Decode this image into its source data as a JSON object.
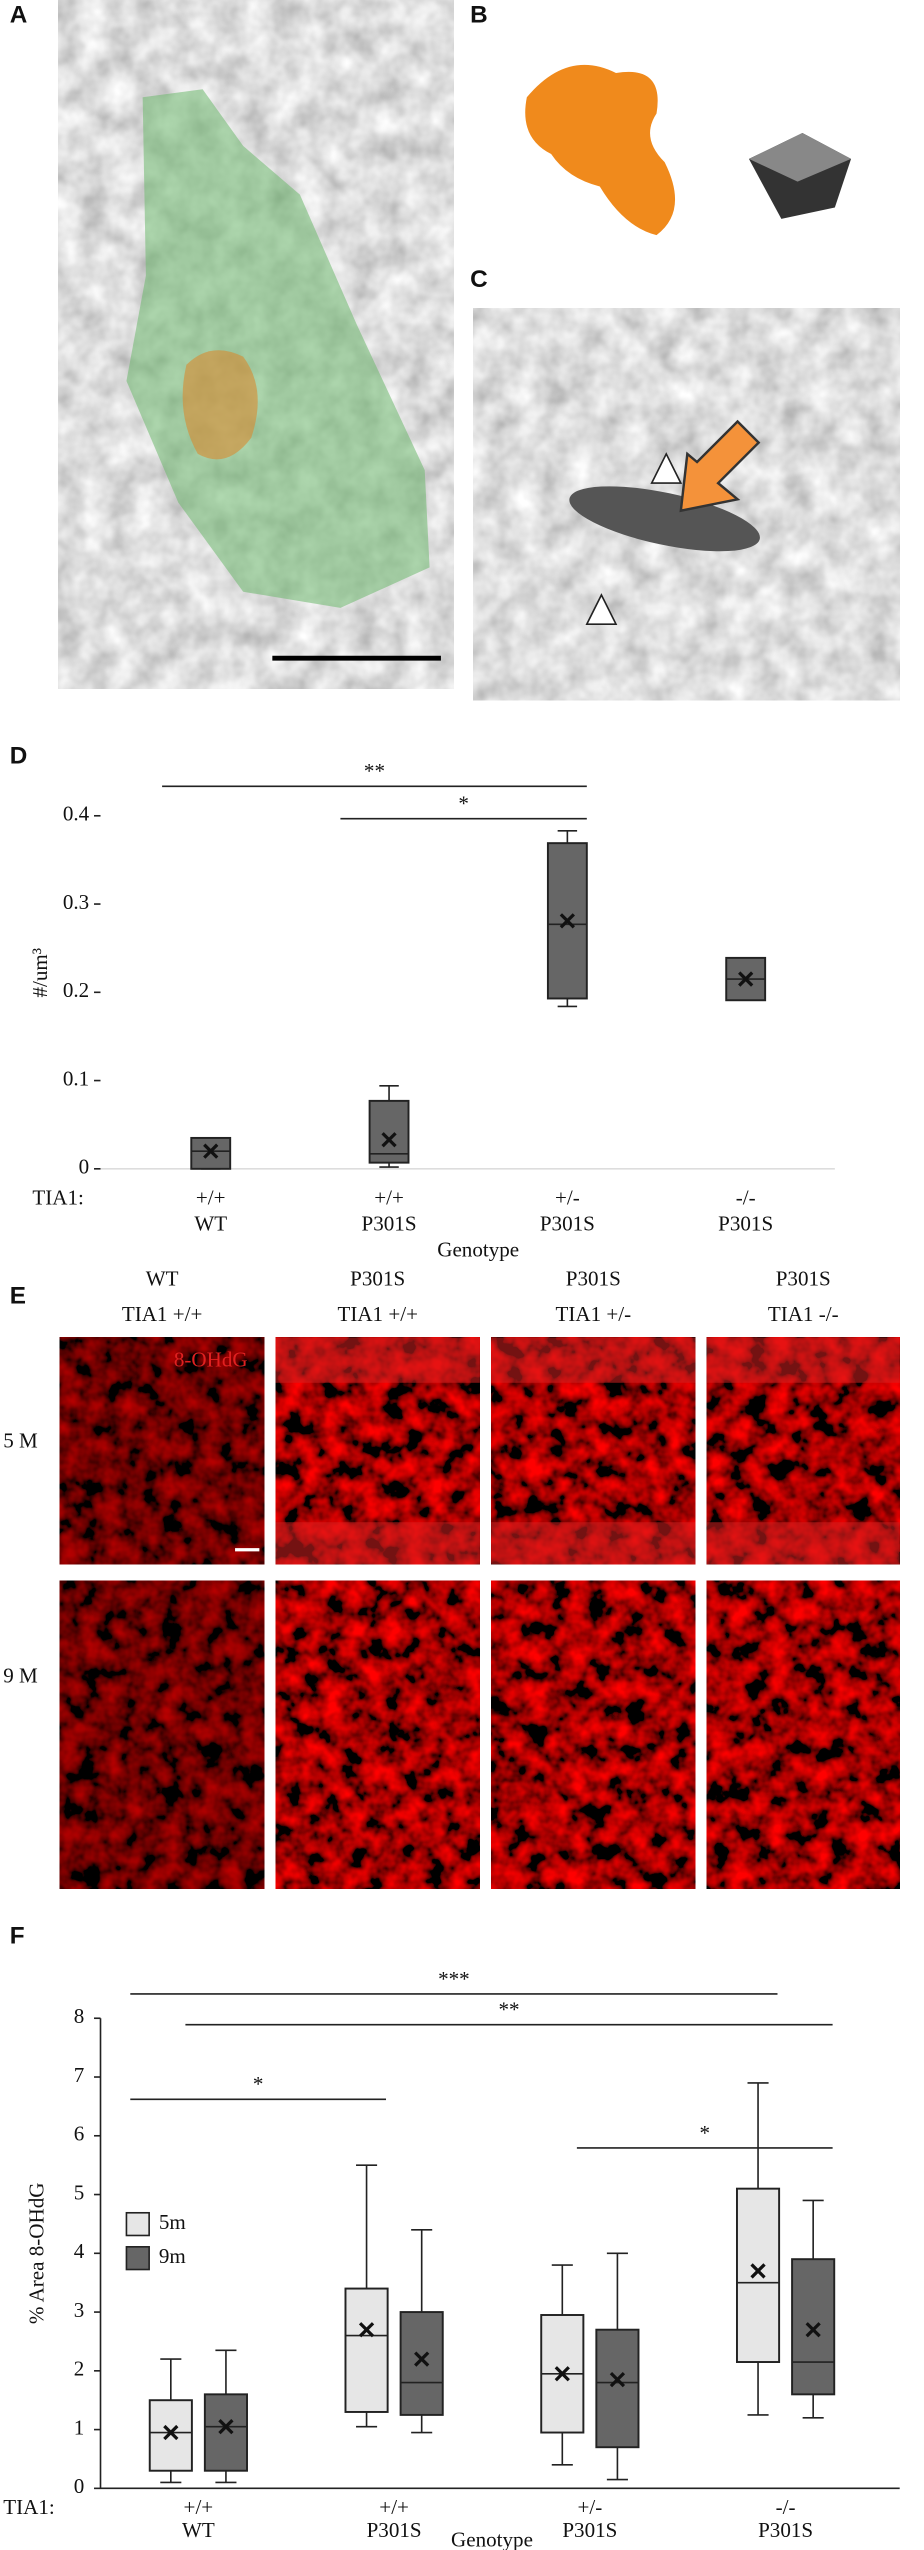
{
  "panel_labels": [
    "A",
    "B",
    "C",
    "D",
    "E",
    "F"
  ],
  "panel_e": {
    "columns": [
      {
        "genotype": "WT",
        "tia1": "TIA1 +/+"
      },
      {
        "genotype": "P301S",
        "tia1": "TIA1 +/+"
      },
      {
        "genotype": "P301S",
        "tia1": "TIA1 +/-"
      },
      {
        "genotype": "P301S",
        "tia1": "TIA1 -/-"
      }
    ],
    "rows": [
      "5 M",
      "9 M"
    ],
    "stain": "8-OHdG"
  },
  "chart_data": [
    {
      "type": "box",
      "ylabel": "#/um³",
      "xlabel": "Genotype",
      "group_label": "TIA1:",
      "tia1": [
        "+/+",
        "+/+",
        "+/-",
        "-/-"
      ],
      "categories": [
        "WT",
        "P301S",
        "P301S",
        "P301S"
      ],
      "color": "#666666",
      "min": [
        0,
        0.002,
        0.184,
        0.191
      ],
      "q1": [
        0,
        0.007,
        0.193,
        0.191
      ],
      "median": [
        0.02,
        0.017,
        0.277,
        0.215
      ],
      "q3": [
        0.035,
        0.077,
        0.369,
        0.239
      ],
      "max": [
        0.035,
        0.094,
        0.383,
        0.239
      ],
      "mean": [
        0.02,
        0.033,
        0.281,
        0.215
      ],
      "ylim": [
        0,
        0.45
      ],
      "yticks": [
        0,
        0.1,
        0.2,
        0.3,
        0.4
      ],
      "annotations": [
        {
          "label": "**",
          "from": 0,
          "to": 2
        },
        {
          "label": "*",
          "from": 1,
          "to": 2
        }
      ]
    },
    {
      "type": "grouped_box",
      "ylabel": "% Area 8-OHdG",
      "xlabel": "Genotype",
      "group_label": "TIA1:",
      "tia1": [
        "+/+",
        "+/+",
        "+/-",
        "-/-"
      ],
      "categories": [
        "WT",
        "P301S",
        "P301S",
        "P301S"
      ],
      "legend": "left",
      "series": [
        {
          "name": "5m",
          "color": "#e6e6e6",
          "min": [
            0.1,
            1.05,
            0.4,
            1.25
          ],
          "q1": [
            0.3,
            1.3,
            0.95,
            2.15
          ],
          "median": [
            0.95,
            2.6,
            1.95,
            3.5
          ],
          "q3": [
            1.5,
            3.4,
            2.95,
            5.1
          ],
          "max": [
            2.2,
            5.5,
            3.8,
            6.9
          ],
          "mean": [
            0.95,
            2.7,
            1.95,
            3.7
          ]
        },
        {
          "name": "9m",
          "color": "#666666",
          "min": [
            0.1,
            0.95,
            0.15,
            1.2
          ],
          "q1": [
            0.3,
            1.25,
            0.7,
            1.6
          ],
          "median": [
            1.05,
            1.8,
            1.8,
            2.15
          ],
          "q3": [
            1.6,
            3.0,
            2.7,
            3.9
          ],
          "max": [
            2.35,
            4.4,
            4.0,
            4.9
          ],
          "mean": [
            1.05,
            2.2,
            1.85,
            2.7
          ]
        }
      ],
      "ylim": [
        0,
        8
      ],
      "yticks": [
        0,
        1,
        2,
        3,
        4,
        5,
        6,
        7,
        8
      ],
      "annotations": [
        {
          "label": "***",
          "from": [
            0,
            0
          ],
          "to": [
            3,
            0
          ]
        },
        {
          "label": "**",
          "from": [
            0,
            1
          ],
          "to": [
            3,
            1
          ]
        },
        {
          "label": "*",
          "from": [
            2,
            1
          ],
          "to": [
            3,
            1
          ]
        },
        {
          "label": "*",
          "from": [
            0,
            0
          ],
          "to": [
            1,
            0
          ]
        }
      ]
    }
  ]
}
